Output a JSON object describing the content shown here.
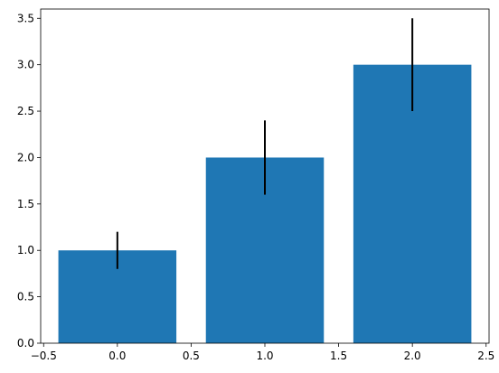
{
  "chart_data": {
    "type": "bar",
    "title": "",
    "xlabel": "",
    "ylabel": "",
    "x": [
      0,
      1,
      2
    ],
    "values": [
      1.0,
      2.0,
      3.0
    ],
    "error": [
      0.2,
      0.4,
      0.5
    ],
    "bar_width": 0.8,
    "xlim": [
      -0.52,
      2.52
    ],
    "ylim": [
      0,
      3.6
    ],
    "xticks": [
      -0.5,
      0.0,
      0.5,
      1.0,
      1.5,
      2.0,
      2.5
    ],
    "xtick_labels": [
      "−0.5",
      "0.0",
      "0.5",
      "1.0",
      "1.5",
      "2.0",
      "2.5"
    ],
    "yticks": [
      0.0,
      0.5,
      1.0,
      1.5,
      2.0,
      2.5,
      3.0,
      3.5
    ],
    "ytick_labels": [
      "0.0",
      "0.5",
      "1.0",
      "1.5",
      "2.0",
      "2.5",
      "3.0",
      "3.5"
    ],
    "grid": false,
    "bar_color": "#1f77b4",
    "error_color": "#000000"
  }
}
